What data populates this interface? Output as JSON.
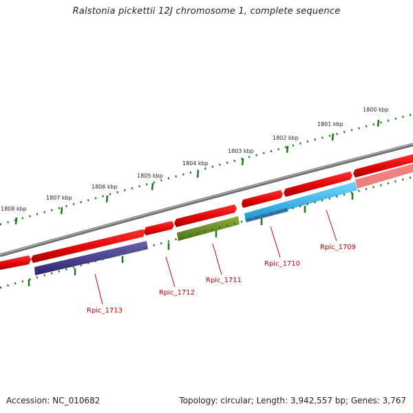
{
  "title": "Ralstonia pickettii 12J chromosome 1, complete sequence",
  "footer": {
    "accession": "Accession: NC_010682",
    "stats": "Topology: circular; Length: 3,942,557 bp; Genes: 3,767"
  },
  "colors": {
    "backbone": "#808080",
    "forward_gene": "#ff0000",
    "reverse_gene_1713": "#4a3f8f",
    "reverse_gene_1711": "#6b8e23",
    "reverse_gene_1710": "#3fb0e8",
    "ruler": "#1a7a1a",
    "gene_label": "#cc0000"
  },
  "kbp_ticks": [
    "1800 kbp",
    "1801 kbp",
    "1802 kbp",
    "1803 kbp",
    "1804 kbp",
    "1805 kbp",
    "1806 kbp",
    "1807 kbp",
    "1808 kbp"
  ],
  "gene_labels": [
    "Rpic_1709",
    "Rpic_1710",
    "Rpic_1711",
    "Rpic_1712",
    "Rpic_1713"
  ]
}
